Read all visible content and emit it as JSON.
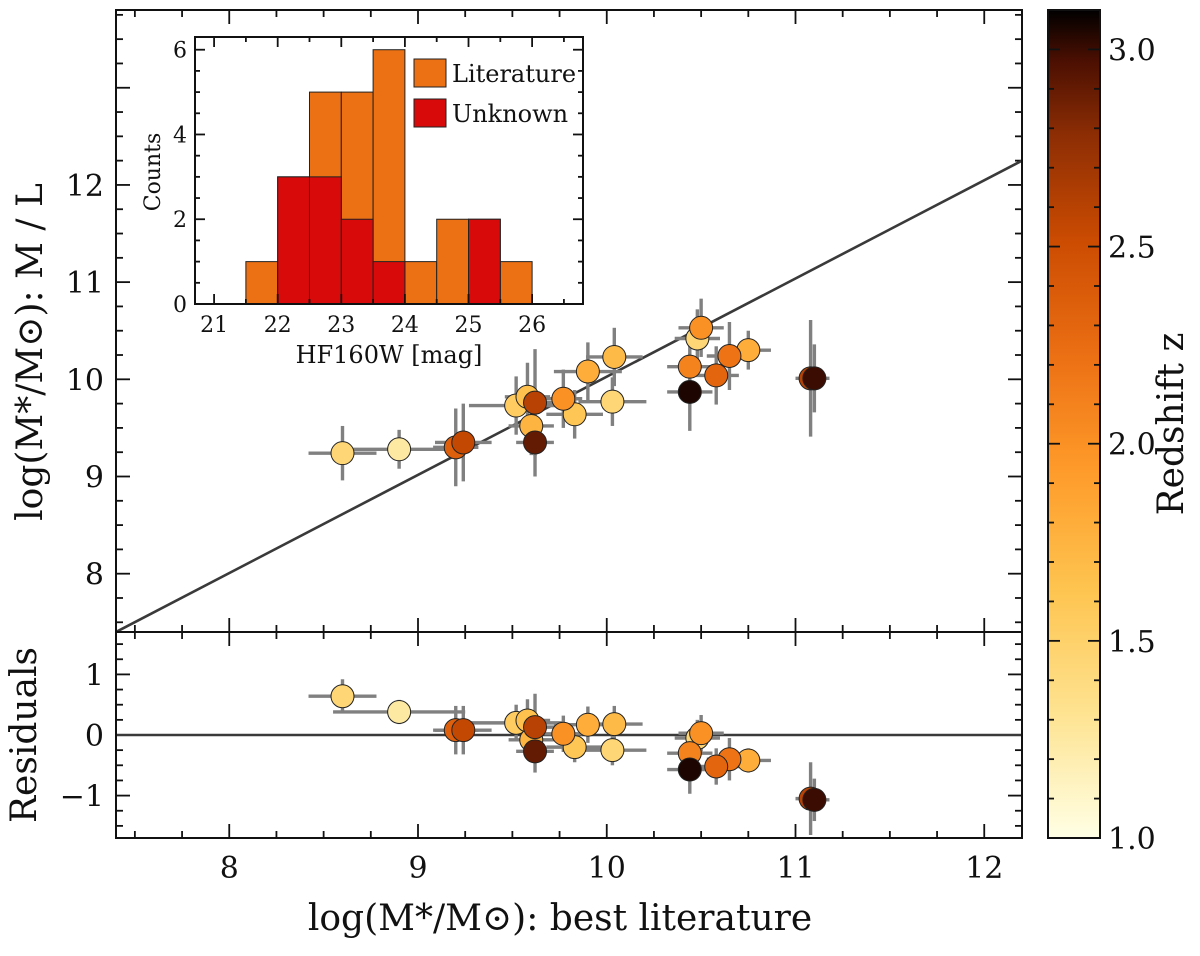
{
  "chart_data": [
    {
      "type": "scatter",
      "panel": "main",
      "xlabel": "log(M*/M⊙): best literature",
      "ylabel": "log(M*/M⊙): M / L",
      "xlim": [
        7.4,
        12.2
      ],
      "ylim": [
        7.4,
        13.8
      ],
      "xticks": [
        8,
        9,
        10,
        11,
        12
      ],
      "yticks": [
        8,
        9,
        10,
        11,
        12
      ],
      "fit_line": {
        "x": [
          7.4,
          12.2
        ],
        "y": [
          7.4,
          12.25
        ]
      },
      "colorbar": {
        "label": "Redshift z",
        "range": [
          1.0,
          3.1
        ],
        "ticks": [
          "1.0",
          "1.5",
          "2.0",
          "2.5",
          "3.0"
        ]
      },
      "points": [
        {
          "x": 8.6,
          "y": 9.24,
          "z": 1.45,
          "xerr": 0.18,
          "yerr": 0.28
        },
        {
          "x": 8.9,
          "y": 9.28,
          "z": 1.25,
          "xerr": 0.35,
          "yerr": 0.2
        },
        {
          "x": 9.2,
          "y": 9.3,
          "z": 2.35,
          "xerr": 0.12,
          "yerr": 0.4
        },
        {
          "x": 9.24,
          "y": 9.35,
          "z": 2.55,
          "xerr": 0.15,
          "yerr": 0.4
        },
        {
          "x": 9.52,
          "y": 9.73,
          "z": 1.55,
          "xerr": 0.25,
          "yerr": 0.3
        },
        {
          "x": 9.58,
          "y": 9.82,
          "z": 1.65,
          "xerr": 0.12,
          "yerr": 0.35
        },
        {
          "x": 9.6,
          "y": 9.52,
          "z": 1.75,
          "xerr": 0.12,
          "yerr": 0.3
        },
        {
          "x": 9.62,
          "y": 9.35,
          "z": 2.9,
          "xerr": 0.1,
          "yerr": 0.35
        },
        {
          "x": 9.62,
          "y": 9.76,
          "z": 2.6,
          "xerr": 0.12,
          "yerr": 0.55
        },
        {
          "x": 9.77,
          "y": 9.8,
          "z": 2.0,
          "xerr": 0.1,
          "yerr": 0.3
        },
        {
          "x": 9.83,
          "y": 9.64,
          "z": 1.6,
          "xerr": 0.15,
          "yerr": 0.25
        },
        {
          "x": 9.9,
          "y": 10.08,
          "z": 1.8,
          "xerr": 0.18,
          "yerr": 0.3
        },
        {
          "x": 10.03,
          "y": 9.77,
          "z": 1.45,
          "xerr": 0.18,
          "yerr": 0.25
        },
        {
          "x": 10.04,
          "y": 10.23,
          "z": 1.7,
          "xerr": 0.15,
          "yerr": 0.3
        },
        {
          "x": 10.44,
          "y": 10.13,
          "z": 2.1,
          "xerr": 0.12,
          "yerr": 0.35
        },
        {
          "x": 10.44,
          "y": 9.87,
          "z": 3.05,
          "xerr": 0.12,
          "yerr": 0.4
        },
        {
          "x": 10.48,
          "y": 10.42,
          "z": 1.45,
          "xerr": 0.12,
          "yerr": 0.3
        },
        {
          "x": 10.5,
          "y": 10.53,
          "z": 2.0,
          "xerr": 0.12,
          "yerr": 0.3
        },
        {
          "x": 10.58,
          "y": 10.04,
          "z": 2.3,
          "xerr": 0.12,
          "yerr": 0.3
        },
        {
          "x": 10.65,
          "y": 10.24,
          "z": 2.2,
          "xerr": 0.12,
          "yerr": 0.35
        },
        {
          "x": 10.75,
          "y": 10.3,
          "z": 1.8,
          "xerr": 0.12,
          "yerr": 0.2
        },
        {
          "x": 11.08,
          "y": 10.01,
          "z": 2.6,
          "xerr": 0.08,
          "yerr": 0.6
        },
        {
          "x": 11.1,
          "y": 10.01,
          "z": 3.0,
          "xerr": 0.08,
          "yerr": 0.35
        }
      ]
    },
    {
      "type": "scatter",
      "panel": "residuals",
      "ylabel": "Residuals",
      "ylim": [
        -1.7,
        1.7
      ],
      "yticks": [
        -1,
        0,
        1
      ],
      "zero_line": 0,
      "points": [
        {
          "x": 8.6,
          "y": 0.64,
          "z": 1.45,
          "xerr": 0.18,
          "yerr": 0.28
        },
        {
          "x": 8.9,
          "y": 0.38,
          "z": 1.25,
          "xerr": 0.35,
          "yerr": 0.2
        },
        {
          "x": 9.2,
          "y": 0.08,
          "z": 2.35,
          "xerr": 0.12,
          "yerr": 0.4
        },
        {
          "x": 9.24,
          "y": 0.08,
          "z": 2.55,
          "xerr": 0.15,
          "yerr": 0.4
        },
        {
          "x": 9.52,
          "y": 0.2,
          "z": 1.55,
          "xerr": 0.25,
          "yerr": 0.3
        },
        {
          "x": 9.58,
          "y": 0.24,
          "z": 1.65,
          "xerr": 0.12,
          "yerr": 0.35
        },
        {
          "x": 9.6,
          "y": -0.08,
          "z": 1.75,
          "xerr": 0.12,
          "yerr": 0.3
        },
        {
          "x": 9.62,
          "y": -0.27,
          "z": 2.9,
          "xerr": 0.1,
          "yerr": 0.35
        },
        {
          "x": 9.62,
          "y": 0.13,
          "z": 2.6,
          "xerr": 0.12,
          "yerr": 0.55
        },
        {
          "x": 9.77,
          "y": 0.02,
          "z": 2.0,
          "xerr": 0.1,
          "yerr": 0.3
        },
        {
          "x": 9.83,
          "y": -0.2,
          "z": 1.6,
          "xerr": 0.15,
          "yerr": 0.25
        },
        {
          "x": 9.9,
          "y": 0.17,
          "z": 1.8,
          "xerr": 0.18,
          "yerr": 0.3
        },
        {
          "x": 10.03,
          "y": -0.25,
          "z": 1.45,
          "xerr": 0.18,
          "yerr": 0.25
        },
        {
          "x": 10.04,
          "y": 0.18,
          "z": 1.7,
          "xerr": 0.15,
          "yerr": 0.3
        },
        {
          "x": 10.44,
          "y": -0.3,
          "z": 2.1,
          "xerr": 0.12,
          "yerr": 0.35
        },
        {
          "x": 10.44,
          "y": -0.57,
          "z": 3.05,
          "xerr": 0.12,
          "yerr": 0.4
        },
        {
          "x": 10.48,
          "y": -0.05,
          "z": 1.45,
          "xerr": 0.12,
          "yerr": 0.3
        },
        {
          "x": 10.5,
          "y": 0.03,
          "z": 2.0,
          "xerr": 0.12,
          "yerr": 0.3
        },
        {
          "x": 10.58,
          "y": -0.52,
          "z": 2.3,
          "xerr": 0.12,
          "yerr": 0.3
        },
        {
          "x": 10.65,
          "y": -0.4,
          "z": 2.2,
          "xerr": 0.12,
          "yerr": 0.35
        },
        {
          "x": 10.75,
          "y": -0.42,
          "z": 1.8,
          "xerr": 0.12,
          "yerr": 0.2
        },
        {
          "x": 11.08,
          "y": -1.05,
          "z": 2.6,
          "xerr": 0.08,
          "yerr": 0.6
        },
        {
          "x": 11.1,
          "y": -1.07,
          "z": 3.0,
          "xerr": 0.08,
          "yerr": 0.35
        }
      ]
    },
    {
      "type": "bar",
      "panel": "inset-histogram",
      "xlabel": "HF160W [mag]",
      "ylabel": "Counts",
      "xlim": [
        20.7,
        26.8
      ],
      "ylim": [
        0,
        6.3
      ],
      "xticks": [
        21,
        22,
        23,
        24,
        25,
        26
      ],
      "yticks": [
        0,
        2,
        4,
        6
      ],
      "bin_width": 0.5,
      "series": [
        {
          "name": "Literature",
          "color": "#ec7014",
          "bins": [
            21.5,
            22.0,
            22.5,
            23.0,
            23.5,
            24.0,
            24.5,
            25.0,
            25.5
          ],
          "values": [
            1,
            3,
            5,
            5,
            6,
            1,
            2,
            2,
            1
          ]
        },
        {
          "name": "Unknown",
          "color": "#d90a0a",
          "bins": [
            22.0,
            22.5,
            23.0,
            23.5,
            25.0
          ],
          "values": [
            3,
            3,
            2,
            1,
            2
          ]
        }
      ]
    }
  ],
  "colors": {
    "literature": "#ec7014",
    "unknown": "#d90a0a",
    "errorbar": "#808080",
    "line": "#3a3a3a"
  }
}
